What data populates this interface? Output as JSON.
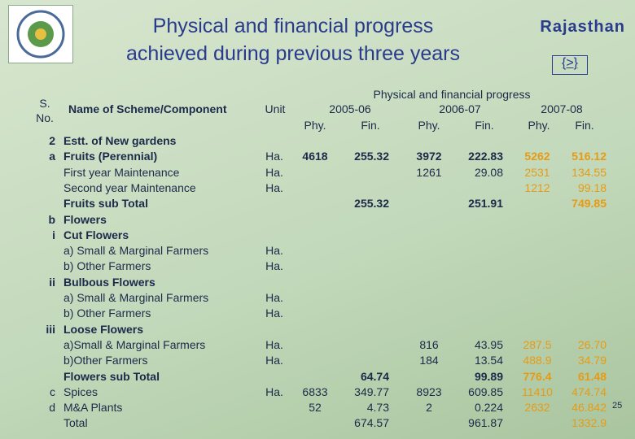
{
  "header": {
    "title_line1": "Physical and financial progress",
    "title_line2": "achieved during previous three years",
    "state": "Rajasthan",
    "nav": "{>}"
  },
  "table": {
    "col_sno": "S. No.",
    "col_name": "Name of Scheme/Component",
    "col_unit": "Unit",
    "group": "Physical and financial progress",
    "years": [
      "2005-06",
      "2006-07",
      "2007-08"
    ],
    "sub": [
      "Phy.",
      "Fin.",
      "Phy.",
      "Fin.",
      "Phy.",
      "Fin."
    ],
    "rows": [
      [
        "2",
        "Estt. of New gardens",
        null,
        null,
        null,
        null,
        null,
        null,
        null
      ],
      [
        "a",
        "Fruits (Perennial)",
        "Ha.",
        "4618",
        "255.32",
        "3972",
        "222.83",
        "5262",
        "516.12"
      ],
      [
        null,
        "First year Maintenance",
        "Ha.",
        null,
        null,
        "1261",
        "29.08",
        "2531",
        "134.55"
      ],
      [
        null,
        "Second year Maintenance",
        "Ha.",
        null,
        null,
        null,
        null,
        "1212",
        "99.18"
      ],
      [
        null,
        "Fruits sub Total",
        null,
        null,
        "255.32",
        null,
        "251.91",
        null,
        "749.85"
      ],
      [
        "b",
        "Flowers",
        null,
        null,
        null,
        null,
        null,
        null,
        null
      ],
      [
        "i",
        "Cut Flowers",
        null,
        null,
        null,
        null,
        null,
        null,
        null
      ],
      [
        null,
        "a) Small & Marginal Farmers",
        "Ha.",
        null,
        null,
        null,
        null,
        null,
        null
      ],
      [
        null,
        "b) Other Farmers",
        "Ha.",
        null,
        null,
        null,
        null,
        null,
        null
      ],
      [
        "ii",
        "Bulbous Flowers",
        null,
        null,
        null,
        null,
        null,
        null,
        null
      ],
      [
        null,
        "a) Small & Marginal Farmers",
        "Ha.",
        null,
        null,
        null,
        null,
        null,
        null
      ],
      [
        null,
        "b) Other Farmers",
        "Ha.",
        null,
        null,
        null,
        null,
        null,
        null
      ],
      [
        "iii",
        "Loose Flowers",
        null,
        null,
        null,
        null,
        null,
        null,
        null
      ],
      [
        null,
        "a)Small & Marginal Farmers",
        "Ha.",
        null,
        null,
        "816",
        "43.95",
        "287.5",
        "26.70"
      ],
      [
        null,
        "b)Other Farmers",
        "Ha.",
        null,
        null,
        "184",
        "13.54",
        "488.9",
        "34.79"
      ],
      [
        null,
        "Flowers sub Total",
        null,
        null,
        "64.74",
        null,
        "99.89",
        "776.4",
        "61.48"
      ],
      [
        "c",
        "Spices",
        "Ha.",
        "6833",
        "349.77",
        "8923",
        "609.85",
        "11410",
        "474.74"
      ],
      [
        "d",
        "M&A Plants",
        null,
        "52",
        "4.73",
        "2",
        "0.224",
        "2632",
        "46.842"
      ],
      [
        null,
        "Total",
        null,
        null,
        "674.57",
        null,
        "961.87",
        null,
        "1332.9"
      ]
    ]
  },
  "footer": {
    "page": "25"
  }
}
